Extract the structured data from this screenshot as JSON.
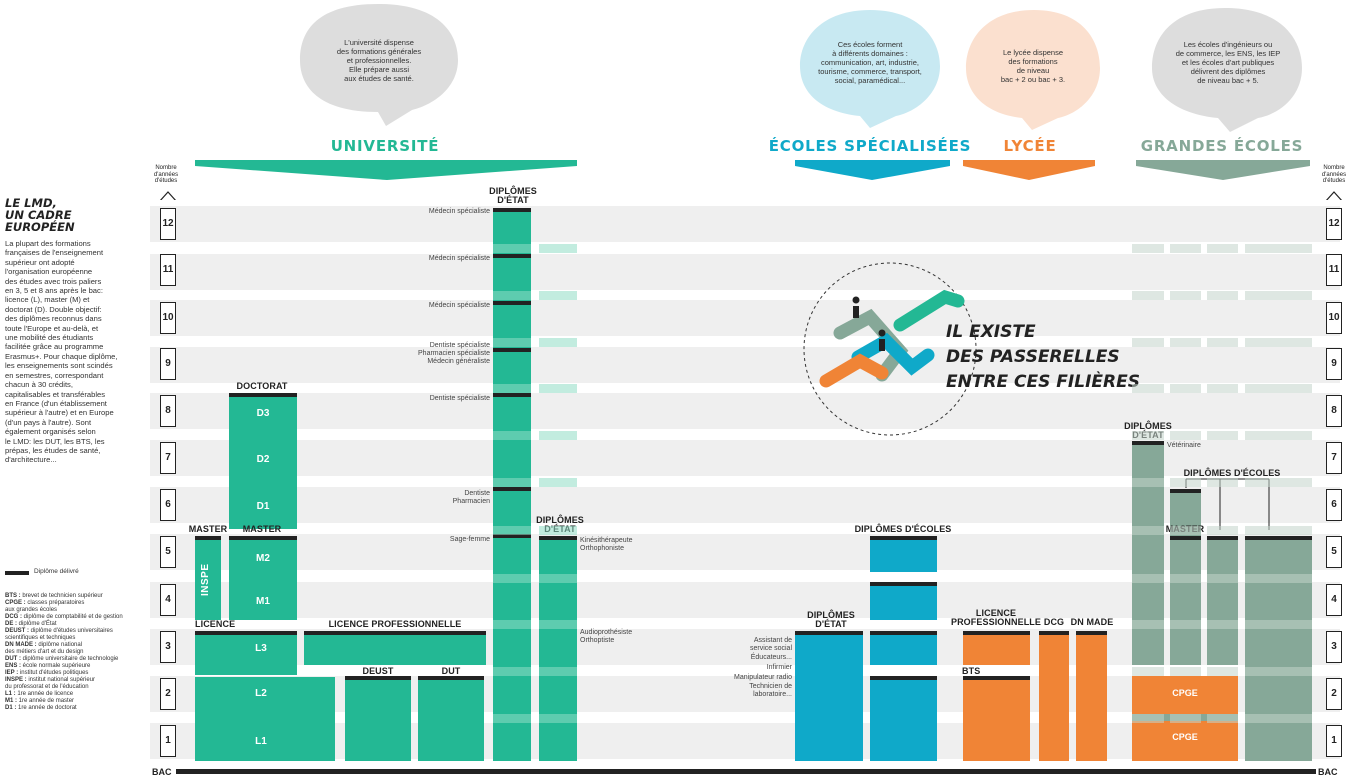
{
  "sidebar": {
    "title_line1": "LE LMD,",
    "title_line2": "UN CADRE",
    "title_line3": "EUROPÉEN",
    "body": [
      "La plupart des formations",
      "françaises de l'enseignement",
      "supérieur ont adopté",
      "l'organisation européenne",
      "des études avec trois paliers",
      "en 3, 5 et 8 ans après le bac:",
      "licence (L), master (M) et",
      "doctorat (D). Double objectif:",
      "des diplômes reconnus dans",
      "toute l'Europe et au-delà, et",
      "une mobilité des étudiants",
      "facilitée grâce au programme",
      "Erasmus+. Pour chaque diplôme,",
      "les enseignements sont scindés",
      "en semestres, correspondant",
      "chacun à 30 crédits,",
      "capitalisables et transférables",
      "en France (d'un établissement",
      "supérieur à l'autre) et en Europe",
      "(d'un pays à l'autre). Sont",
      "également organisés selon",
      "le LMD: les DUT, les BTS, les",
      "prépas, les études de santé,",
      "d'architecture..."
    ],
    "legend_diploma": "Diplôme délivré",
    "glossary": [
      [
        "BTS :",
        "brevet de technicien supérieur"
      ],
      [
        "CPGE :",
        "classes préparatoires"
      ],
      [
        "",
        "aux grandes écoles"
      ],
      [
        "DCG :",
        "diplôme de comptabilité et de gestion"
      ],
      [
        "DE :",
        "diplôme d'État"
      ],
      [
        "DEUST :",
        "diplôme d'études universitaires"
      ],
      [
        "",
        "scientifiques et techniques"
      ],
      [
        "DN MADE :",
        "diplôme national"
      ],
      [
        "",
        "des métiers d'art et du design"
      ],
      [
        "DUT :",
        "diplôme universitaire de technologie"
      ],
      [
        "ENS :",
        "école normale supérieure"
      ],
      [
        "IEP :",
        "institut d'études politiques"
      ],
      [
        "INSPE :",
        "institut national supérieur"
      ],
      [
        "",
        "du professorat et de l'éducation"
      ],
      [
        "L1 :",
        "1re année de licence"
      ],
      [
        "M1 :",
        "1re année de master"
      ],
      [
        "D1 :",
        "1re année de doctorat"
      ]
    ]
  },
  "axis": {
    "label_line1": "Nombre",
    "label_line2": "d'années",
    "label_line3": "d'études",
    "years": [
      "12",
      "11",
      "10",
      "9",
      "8",
      "7",
      "6",
      "5",
      "4",
      "3",
      "2",
      "1"
    ],
    "bac": "BAC"
  },
  "sections": {
    "universite": {
      "title": "UNIVERSITÉ",
      "color": "#23b894",
      "bubble": [
        "L'université dispense",
        "des formations générales",
        "et professionnelles.",
        "Elle prépare aussi",
        "aux études de santé."
      ]
    },
    "ecoles_specialisees": {
      "title": "ÉCOLES SPÉCIALISÉES",
      "color": "#0fa9c9",
      "bubble": [
        "Ces écoles forment",
        "à différents domaines :",
        "communication, art, industrie,",
        "tourisme, commerce, transport,",
        "social, paramédical..."
      ]
    },
    "lycee": {
      "title": "LYCÉE",
      "color": "#f08436",
      "bubble": [
        "Le lycée dispense",
        "des formations",
        "de niveau",
        "bac + 2 ou bac + 3."
      ]
    },
    "grandes_ecoles": {
      "title": "GRANDES ÉCOLES",
      "color": "#86a898",
      "bubble": [
        "Les écoles d'ingénieurs ou",
        "de commerce, les ENS, les IEP",
        "et les écoles d'art publiques",
        "délivrent des diplômes",
        "de niveau bac + 5."
      ]
    }
  },
  "headers": {
    "doctorat": "DOCTORAT",
    "master": "MASTER",
    "master2": "MASTER",
    "licence": "LICENCE",
    "licence_pro": "LICENCE PROFESSIONNELLE",
    "deust": "DEUST",
    "dut": "DUT",
    "de_univ_1": "DIPLÔMES",
    "de_univ_2": "D'ÉTAT",
    "de_univ2_1": "DIPLÔMES",
    "de_univ2_2": "D'ÉTAT",
    "de_ecoles_1": "DIPLÔMES",
    "de_ecoles_2": "D'ÉTAT",
    "dipl_ecoles": "DIPLÔMES D'ÉCOLES",
    "lp_lycee_1": "LICENCE",
    "lp_lycee_2": "PROFESSIONNELLE",
    "dcg": "DCG",
    "dnmade": "DN MADE",
    "bts": "BTS",
    "de_ge_1": "DIPLÔMES",
    "de_ge_2": "D'ÉTAT",
    "dipl_ecoles_ge": "DIPLÔMES D'ÉCOLES",
    "master_ge": "MASTER"
  },
  "levels": {
    "d3": "D3",
    "d2": "D2",
    "d1": "D1",
    "m2": "M2",
    "m1": "M1",
    "l3": "L3",
    "l2": "L2",
    "l1": "L1",
    "inspe": "INSPE",
    "cpge2": "CPGE",
    "cpge1": "CPGE"
  },
  "sante": {
    "y12": "Médecin spécialiste",
    "y11": "Médecin spécialiste",
    "y10": "Médecin spécialiste",
    "y9a": "Dentiste spécialiste",
    "y9b": "Pharmacien spécialiste",
    "y9c": "Médecin généraliste",
    "y8": "Dentiste spécialiste",
    "y6a": "Dentiste",
    "y6b": "Pharmacien",
    "y5": "Sage-femme",
    "r5a": "Kinésithérapeute",
    "r5b": "Orthophoniste",
    "r3a": "Audioprothésiste",
    "r3b": "Orthoptiste"
  },
  "ecoles_labels": [
    "Assistant de",
    "service social",
    "Éducateurs...",
    "Infirmier",
    "Manipulateur radio",
    "Technicien de",
    "laboratoire..."
  ],
  "veterinaire": "Vétérinaire",
  "passerelles": [
    "IL EXISTE",
    "DES PASSERELLES",
    "ENTRE CES FILIÈRES"
  ],
  "colors": {
    "univ": "#23b894",
    "ecoles": "#0fa9c9",
    "lycee": "#f08436",
    "ge": "#86a898",
    "band": "#efefef",
    "ink": "#222222"
  }
}
